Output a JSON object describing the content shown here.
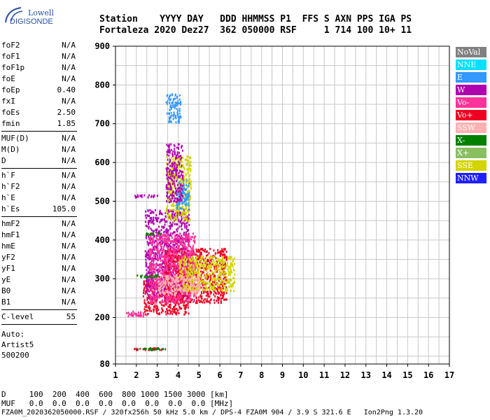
{
  "logo": {
    "line1": "Lowell",
    "line2": "DIGISONDE"
  },
  "header": {
    "line1": "Station    YYYY DAY   DDD HHMMSS P1  FFS S AXN PPS IGA PS",
    "line2": "Fortaleza 2020 Dez27  362 050000 RSF     1 714 100 10+ 11"
  },
  "sidebar": {
    "group1": [
      {
        "k": "foF2",
        "v": "N/A"
      },
      {
        "k": "foF1",
        "v": "N/A"
      },
      {
        "k": "foF1p",
        "v": "N/A"
      },
      {
        "k": "foE",
        "v": "N/A"
      },
      {
        "k": "foEp",
        "v": "0.40"
      },
      {
        "k": "fxI",
        "v": "N/A"
      },
      {
        "k": "foEs",
        "v": "2.50"
      },
      {
        "k": "fmin",
        "v": "1.85"
      }
    ],
    "group2": [
      {
        "k": "MUF(D)",
        "v": "N/A"
      },
      {
        "k": "M(D)",
        "v": "N/A"
      },
      {
        "k": "D",
        "v": "N/A"
      }
    ],
    "group3": [
      {
        "k": "h`F",
        "v": "N/A"
      },
      {
        "k": "h`F2",
        "v": "N/A"
      },
      {
        "k": "h`E",
        "v": "N/A"
      },
      {
        "k": "h`Es",
        "v": "105.0"
      }
    ],
    "group4": [
      {
        "k": "hmF2",
        "v": "N/A"
      },
      {
        "k": "hmF1",
        "v": "N/A"
      },
      {
        "k": "hmE",
        "v": "N/A"
      },
      {
        "k": "yF2",
        "v": "N/A"
      },
      {
        "k": "yF1",
        "v": "N/A"
      },
      {
        "k": "yE",
        "v": "N/A"
      },
      {
        "k": "B0",
        "v": "N/A"
      },
      {
        "k": "B1",
        "v": "N/A"
      }
    ],
    "clevel": {
      "k": "C-level",
      "v": "55"
    },
    "auto": [
      "Auto:",
      "Artist5",
      "500200"
    ]
  },
  "legend": [
    {
      "label": "NoVal",
      "color": "#808080"
    },
    {
      "label": "NNE",
      "color": "#00e0ff"
    },
    {
      "label": "E",
      "color": "#3399ff"
    },
    {
      "label": "W",
      "color": "#b000b0"
    },
    {
      "label": "Vo-",
      "color": "#ff3399"
    },
    {
      "label": "Vo+",
      "color": "#ee0022"
    },
    {
      "label": "SSW",
      "color": "#ffb0b0"
    },
    {
      "label": "X-",
      "color": "#008000"
    },
    {
      "label": "X+",
      "color": "#88c060"
    },
    {
      "label": "SSE",
      "color": "#d4d400"
    },
    {
      "label": "NNW",
      "color": "#2020ff"
    }
  ],
  "chart_data": {
    "type": "scatter",
    "xlim": [
      1,
      17
    ],
    "ylim": [
      80,
      900
    ],
    "x_ticks": [
      1,
      2,
      3,
      4,
      5,
      6,
      7,
      8,
      9,
      10,
      11,
      12,
      13,
      14,
      15,
      16,
      17
    ],
    "y_ticks": [
      80,
      200,
      300,
      400,
      500,
      600,
      700,
      800,
      900
    ],
    "clusters": [
      {
        "color": "#ee0022",
        "x": [
          1.7,
          3.3
        ],
        "y": [
          118,
          124
        ]
      },
      {
        "color": "#008000",
        "x": [
          2.0,
          3.5
        ],
        "y": [
          119,
          123
        ]
      },
      {
        "color": "#ff3399",
        "x": [
          1.5,
          2.5
        ],
        "y": [
          205,
          218
        ]
      },
      {
        "color": "#ee0022",
        "x": [
          2.3,
          4.5
        ],
        "y": [
          210,
          300
        ]
      },
      {
        "color": "#b000b0",
        "x": [
          2.4,
          4.5
        ],
        "y": [
          250,
          480
        ]
      },
      {
        "color": "#ee0022",
        "x": [
          3.3,
          6.3
        ],
        "y": [
          240,
          380
        ]
      },
      {
        "color": "#ff3399",
        "x": [
          2.6,
          4.8
        ],
        "y": [
          240,
          420
        ]
      },
      {
        "color": "#d4d400",
        "x": [
          4.0,
          6.7
        ],
        "y": [
          270,
          360
        ]
      },
      {
        "color": "#d4d400",
        "x": [
          3.4,
          4.6
        ],
        "y": [
          450,
          620
        ]
      },
      {
        "color": "#3399ff",
        "x": [
          3.9,
          4.5
        ],
        "y": [
          480,
          560
        ]
      },
      {
        "color": "#3399ff",
        "x": [
          3.4,
          4.1
        ],
        "y": [
          705,
          780
        ]
      },
      {
        "color": "#b000b0",
        "x": [
          3.4,
          4.2
        ],
        "y": [
          500,
          650
        ]
      },
      {
        "color": "#008000",
        "x": [
          2.0,
          3.0
        ],
        "y": [
          305,
          312
        ]
      },
      {
        "color": "#b000b0",
        "x": [
          1.9,
          3.0
        ],
        "y": [
          512,
          518
        ]
      },
      {
        "color": "#008000",
        "x": [
          2.4,
          3.2
        ],
        "y": [
          416,
          420
        ]
      },
      {
        "color": "#ffb0b0",
        "x": [
          3.0,
          5.0
        ],
        "y": [
          260,
          310
        ]
      }
    ]
  },
  "bottom": {
    "line1": "D     100  200  400  600  800 1000 1500 3000 [km]",
    "line2": "MUF   0.0  0.0  0.0  0.0  0.0  0.0  0.0  0.0 [MHz]",
    "line3": "FZA0M_2020362050000.RSF / 320fx256h 50 kHz 5.0 km / DPS-4 FZA0M 904 / 3.9 S 321.6 E   Ion2Png 1.3.20"
  }
}
